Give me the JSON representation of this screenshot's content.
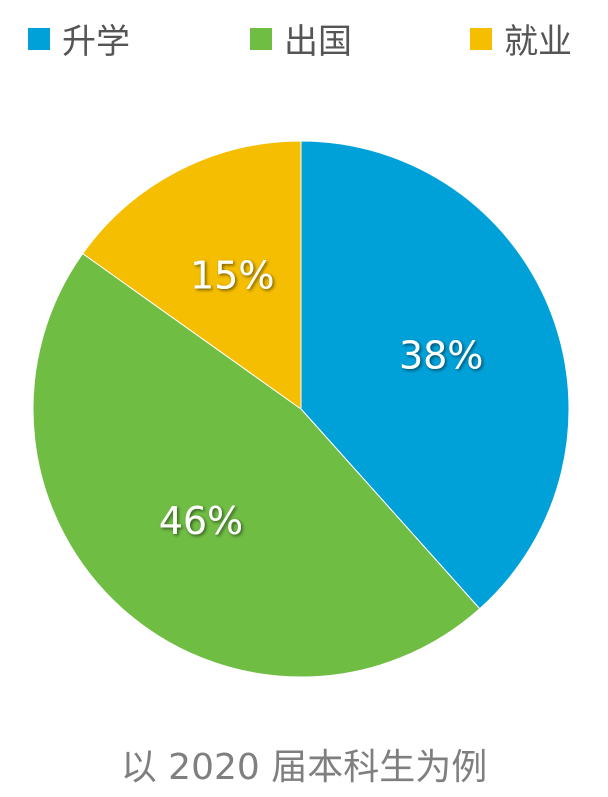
{
  "chart_data": {
    "type": "pie",
    "title": "",
    "categories": [
      "升学",
      "出国",
      "就业"
    ],
    "values": [
      38,
      46,
      15
    ],
    "labels": [
      "38%",
      "46%",
      "15%"
    ],
    "colors": [
      "#00A1D9",
      "#70BD44",
      "#F5BE00"
    ],
    "start": "top",
    "direction": "clockwise",
    "legend": "top"
  },
  "caption": "以 2020 届本科生为例"
}
